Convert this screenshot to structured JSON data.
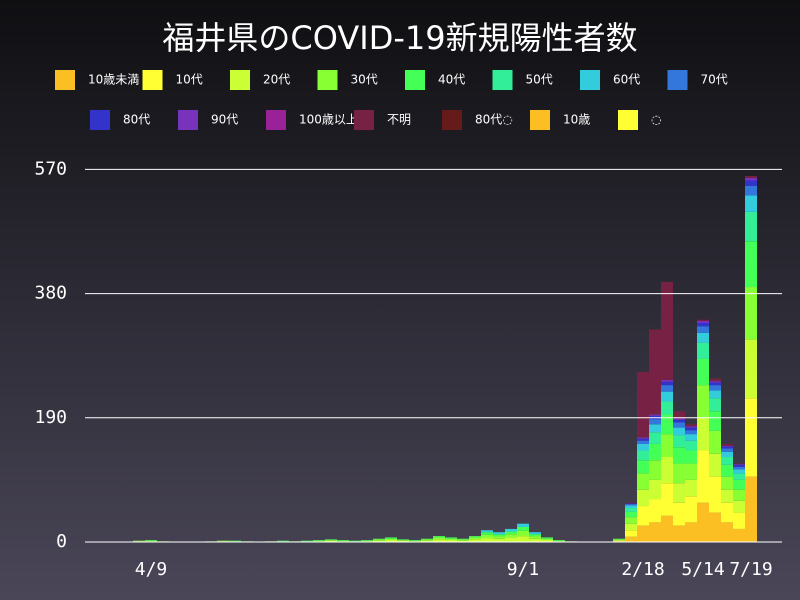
{
  "chart_data": {
    "type": "stacked-bar",
    "title": "福井県のCOVID-19新規陽性者数",
    "categories": [
      null,
      null,
      null,
      null,
      null,
      "4/9",
      null,
      null,
      null,
      null,
      null,
      null,
      null,
      null,
      null,
      null,
      null,
      null,
      null,
      null,
      null,
      null,
      null,
      null,
      null,
      null,
      null,
      null,
      null,
      null,
      null,
      null,
      null,
      null,
      null,
      null,
      "9/1",
      null,
      null,
      null,
      null,
      null,
      null,
      null,
      null,
      null,
      "2/18",
      null,
      null,
      null,
      null,
      "5/14",
      null,
      null,
      null,
      "7/19"
    ],
    "ylim": [
      0,
      592
    ],
    "yticks": [
      0,
      190,
      380,
      570
    ],
    "grid": true,
    "series": [
      {
        "name": "10歳未満",
        "color": "#fbbf24",
        "values": [
          0,
          0,
          0,
          0,
          0,
          0,
          0,
          0,
          0,
          0,
          0,
          0,
          0,
          0,
          0,
          0,
          0,
          0,
          0,
          0,
          0,
          0,
          0,
          0,
          0,
          0,
          0,
          0,
          0,
          0,
          0,
          0,
          0,
          0,
          0,
          0,
          0,
          0,
          0,
          0,
          0,
          0,
          0,
          0,
          1,
          8,
          25,
          30,
          40,
          25,
          30,
          60,
          45,
          30,
          20,
          100
        ]
      },
      {
        "name": "10代",
        "color": "#ffff33",
        "values": [
          0,
          0,
          0,
          0,
          0,
          0,
          0,
          0,
          0,
          0,
          0,
          0,
          0,
          0,
          0,
          0,
          0,
          0,
          0,
          0,
          0,
          0,
          0,
          0,
          0,
          0,
          0,
          0,
          0,
          0,
          0,
          0,
          0,
          0,
          0,
          0,
          0,
          0,
          0,
          0,
          0,
          0,
          0,
          0,
          1,
          10,
          30,
          35,
          50,
          35,
          40,
          80,
          55,
          30,
          25,
          120
        ]
      },
      {
        "name": "20代",
        "color": "#ccff33",
        "values": [
          0,
          0,
          0,
          0,
          1,
          1,
          0,
          0,
          0,
          0,
          0,
          1,
          1,
          0,
          0,
          0,
          1,
          0,
          1,
          1,
          2,
          1,
          1,
          1,
          2,
          3,
          2,
          1,
          2,
          4,
          3,
          2,
          4,
          6,
          5,
          7,
          9,
          5,
          3,
          1,
          0,
          0,
          0,
          0,
          1,
          10,
          25,
          30,
          40,
          30,
          25,
          50,
          35,
          20,
          18,
          90
        ]
      },
      {
        "name": "30代",
        "color": "#88ff33",
        "values": [
          0,
          0,
          0,
          0,
          1,
          1,
          1,
          0,
          0,
          0,
          1,
          1,
          0,
          1,
          0,
          1,
          0,
          1,
          0,
          1,
          1,
          1,
          0,
          1,
          2,
          2,
          1,
          1,
          2,
          3,
          2,
          2,
          3,
          5,
          4,
          5,
          8,
          4,
          2,
          1,
          1,
          0,
          0,
          0,
          1,
          10,
          25,
          30,
          35,
          30,
          25,
          50,
          35,
          20,
          17,
          80
        ]
      },
      {
        "name": "40代",
        "color": "#44ff55",
        "values": [
          0,
          0,
          0,
          0,
          0,
          1,
          0,
          0,
          0,
          0,
          0,
          0,
          1,
          0,
          0,
          0,
          1,
          0,
          1,
          1,
          1,
          1,
          1,
          1,
          1,
          2,
          1,
          1,
          1,
          2,
          2,
          1,
          2,
          4,
          3,
          4,
          6,
          3,
          2,
          1,
          0,
          0,
          0,
          0,
          1,
          8,
          20,
          25,
          30,
          25,
          20,
          40,
          30,
          18,
          15,
          70
        ]
      },
      {
        "name": "50代",
        "color": "#33ee99",
        "values": [
          0,
          0,
          0,
          0,
          0,
          0,
          0,
          0,
          0,
          0,
          0,
          0,
          0,
          0,
          0,
          0,
          0,
          0,
          0,
          0,
          0,
          0,
          0,
          0,
          0,
          0,
          0,
          0,
          0,
          0,
          0,
          0,
          0,
          0,
          0,
          0,
          0,
          0,
          0,
          0,
          0,
          0,
          0,
          0,
          0,
          6,
          15,
          18,
          20,
          18,
          15,
          25,
          20,
          12,
          10,
          45
        ]
      },
      {
        "name": "60代",
        "color": "#33ccdd",
        "values": [
          0,
          0,
          0,
          0,
          0,
          0,
          0,
          0,
          0,
          0,
          0,
          0,
          0,
          0,
          0,
          0,
          0,
          0,
          0,
          0,
          0,
          0,
          0,
          0,
          0,
          0,
          0,
          0,
          0,
          0,
          0,
          0,
          0,
          3,
          3,
          4,
          5,
          3,
          0,
          0,
          0,
          0,
          0,
          0,
          0,
          4,
          10,
          12,
          15,
          12,
          10,
          15,
          12,
          8,
          6,
          25
        ]
      },
      {
        "name": "70代",
        "color": "#3377dd",
        "values": [
          0,
          0,
          0,
          0,
          0,
          0,
          0,
          0,
          0,
          0,
          0,
          0,
          0,
          0,
          0,
          0,
          0,
          0,
          0,
          0,
          0,
          0,
          0,
          0,
          0,
          0,
          0,
          0,
          0,
          0,
          0,
          0,
          0,
          0,
          0,
          0,
          0,
          0,
          0,
          0,
          0,
          0,
          0,
          0,
          0,
          2,
          5,
          8,
          10,
          8,
          6,
          10,
          8,
          5,
          4,
          15
        ]
      },
      {
        "name": "80代",
        "color": "#3333cc",
        "values": [
          0,
          0,
          0,
          0,
          0,
          0,
          0,
          0,
          0,
          0,
          0,
          0,
          0,
          0,
          0,
          0,
          0,
          0,
          0,
          0,
          0,
          0,
          0,
          0,
          0,
          0,
          0,
          0,
          0,
          0,
          0,
          0,
          0,
          0,
          0,
          0,
          0,
          0,
          0,
          0,
          0,
          0,
          0,
          0,
          0,
          1,
          3,
          5,
          5,
          4,
          4,
          5,
          4,
          3,
          3,
          8
        ]
      },
      {
        "name": "90代",
        "color": "#7733bb",
        "values": [
          0,
          0,
          0,
          0,
          0,
          0,
          0,
          0,
          0,
          0,
          0,
          0,
          0,
          0,
          0,
          0,
          0,
          0,
          0,
          0,
          0,
          0,
          0,
          0,
          0,
          0,
          0,
          0,
          0,
          0,
          0,
          0,
          0,
          0,
          0,
          0,
          0,
          0,
          0,
          0,
          0,
          0,
          0,
          0,
          0,
          0,
          2,
          2,
          3,
          2,
          2,
          3,
          2,
          1,
          1,
          4
        ]
      },
      {
        "name": "100歳以上",
        "color": "#992299",
        "values": [
          0,
          0,
          0,
          0,
          0,
          0,
          0,
          0,
          0,
          0,
          0,
          0,
          0,
          0,
          0,
          0,
          0,
          0,
          0,
          0,
          0,
          0,
          0,
          0,
          0,
          0,
          0,
          0,
          0,
          0,
          0,
          0,
          0,
          0,
          0,
          0,
          0,
          0,
          0,
          0,
          0,
          0,
          0,
          0,
          0,
          0,
          0,
          0,
          0,
          0,
          0,
          0,
          0,
          0,
          0,
          0
        ]
      },
      {
        "name": "不明",
        "color": "#772244",
        "values": [
          0,
          0,
          0,
          0,
          0,
          0,
          0,
          0,
          0,
          0,
          0,
          0,
          0,
          0,
          0,
          0,
          0,
          0,
          0,
          0,
          0,
          0,
          0,
          0,
          0,
          0,
          0,
          0,
          0,
          0,
          0,
          0,
          0,
          0,
          0,
          0,
          0,
          0,
          0,
          0,
          0,
          0,
          0,
          0,
          0,
          1,
          100,
          130,
          150,
          11,
          3,
          2,
          4,
          3,
          1,
          3
        ]
      },
      {
        "name": "80代◌",
        "color": "#661a1a",
        "values": [
          0,
          0,
          0,
          0,
          0,
          0,
          0,
          0,
          0,
          0,
          0,
          0,
          0,
          0,
          0,
          0,
          0,
          0,
          0,
          0,
          0,
          0,
          0,
          0,
          0,
          0,
          0,
          0,
          0,
          0,
          0,
          0,
          0,
          0,
          0,
          0,
          0,
          0,
          0,
          0,
          0,
          0,
          0,
          0,
          0,
          0,
          0,
          0,
          0,
          0,
          0,
          0,
          0,
          0,
          0,
          0
        ]
      },
      {
        "name": "10歳",
        "color": "#fbbf24",
        "values": [
          0,
          0,
          0,
          0,
          0,
          0,
          0,
          0,
          0,
          0,
          0,
          0,
          0,
          0,
          0,
          0,
          0,
          0,
          0,
          0,
          0,
          0,
          0,
          0,
          0,
          0,
          0,
          0,
          0,
          0,
          0,
          0,
          0,
          0,
          0,
          0,
          0,
          0,
          0,
          0,
          0,
          0,
          0,
          0,
          0,
          0,
          0,
          0,
          0,
          0,
          0,
          0,
          0,
          0,
          0,
          0
        ]
      },
      {
        "name": "◌",
        "color": "#ffff33",
        "values": [
          0,
          0,
          0,
          0,
          0,
          0,
          0,
          0,
          0,
          0,
          0,
          0,
          0,
          0,
          0,
          0,
          0,
          0,
          0,
          0,
          0,
          0,
          0,
          0,
          0,
          0,
          0,
          0,
          0,
          0,
          0,
          0,
          0,
          0,
          0,
          0,
          0,
          0,
          0,
          0,
          0,
          0,
          0,
          0,
          0,
          0,
          0,
          0,
          0,
          0,
          0,
          0,
          0,
          0,
          0,
          0
        ]
      }
    ]
  }
}
